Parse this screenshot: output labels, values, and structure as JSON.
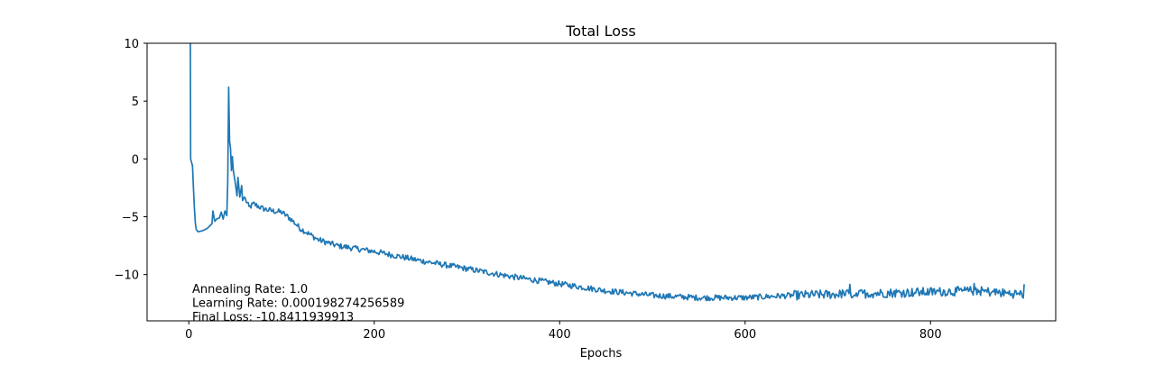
{
  "chart_data": {
    "type": "line",
    "title": "Total Loss",
    "xlabel": "Epochs",
    "ylabel": "",
    "xlim": [
      -45,
      935
    ],
    "ylim": [
      -14,
      10
    ],
    "xticks": [
      0,
      200,
      400,
      600,
      800
    ],
    "yticks": [
      10,
      5,
      0,
      -5,
      -10
    ],
    "xtick_labels": [
      "0",
      "200",
      "400",
      "600",
      "800"
    ],
    "ytick_labels": [
      "10",
      "5",
      "0",
      "−5",
      "−10"
    ],
    "grid": false,
    "legend": "none",
    "colors": {
      "series": "#1f77b4",
      "axes": "#000000"
    },
    "annotations": [
      "Annealing Rate: 1.0",
      "Learning Rate: 0.000198274256589",
      "Final Loss: -10.8411939913"
    ],
    "series": [
      {
        "keypoints": [
          [
            0,
            48
          ],
          [
            1,
            30
          ],
          [
            2,
            0
          ],
          [
            2.5,
            -0.4
          ],
          [
            3,
            -0.3
          ],
          [
            4,
            -0.6
          ],
          [
            5,
            -2.5
          ],
          [
            6,
            -4.2
          ],
          [
            7,
            -5.5
          ],
          [
            8,
            -6.1
          ],
          [
            10,
            -6.3
          ],
          [
            15,
            -6.2
          ],
          [
            20,
            -6.0
          ],
          [
            25,
            -5.6
          ],
          [
            26,
            -4.5
          ],
          [
            28,
            -5.4
          ],
          [
            30,
            -5.2
          ],
          [
            33,
            -5.1
          ],
          [
            35,
            -4.6
          ],
          [
            37,
            -5.2
          ],
          [
            39,
            -4.5
          ],
          [
            41,
            -4.9
          ],
          [
            42,
            -2.0
          ],
          [
            43,
            6.2
          ],
          [
            44,
            1.5
          ],
          [
            45,
            0.9
          ],
          [
            46,
            -1.0
          ],
          [
            47,
            0.2
          ],
          [
            48,
            -1.0
          ],
          [
            50,
            -2.0
          ],
          [
            52,
            -3.2
          ],
          [
            53,
            -1.6
          ],
          [
            55,
            -3.3
          ],
          [
            57,
            -2.3
          ],
          [
            58,
            -3.6
          ],
          [
            60,
            -3.3
          ],
          [
            65,
            -4.2
          ],
          [
            70,
            -3.9
          ],
          [
            80,
            -4.3
          ],
          [
            90,
            -4.5
          ],
          [
            100,
            -4.6
          ],
          [
            110,
            -5.2
          ],
          [
            120,
            -6.0
          ],
          [
            140,
            -7.0
          ],
          [
            160,
            -7.5
          ],
          [
            200,
            -8.0
          ],
          [
            250,
            -8.8
          ],
          [
            300,
            -9.5
          ],
          [
            350,
            -10.2
          ],
          [
            400,
            -10.8
          ],
          [
            450,
            -11.4
          ],
          [
            500,
            -11.8
          ],
          [
            550,
            -12.0
          ],
          [
            600,
            -12.0
          ],
          [
            650,
            -11.8
          ],
          [
            700,
            -11.7
          ],
          [
            750,
            -11.6
          ],
          [
            800,
            -11.5
          ],
          [
            850,
            -11.4
          ],
          [
            880,
            -11.6
          ],
          [
            900,
            -11.7
          ]
        ],
        "noise_amplitude": 0.25,
        "final_point": [
          901,
          -10.84
        ]
      }
    ]
  }
}
